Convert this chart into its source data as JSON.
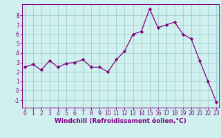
{
  "x": [
    0,
    1,
    2,
    3,
    4,
    5,
    6,
    7,
    8,
    9,
    10,
    11,
    12,
    13,
    14,
    15,
    16,
    17,
    18,
    19,
    20,
    21,
    22,
    23
  ],
  "y": [
    2.5,
    2.8,
    2.2,
    3.2,
    2.5,
    2.9,
    3.0,
    3.3,
    2.5,
    2.5,
    2.0,
    3.3,
    4.2,
    6.0,
    6.3,
    8.7,
    6.7,
    7.0,
    7.3,
    6.0,
    5.5,
    3.2,
    1.0,
    -1.2
  ],
  "line_color": "#800080",
  "marker_color": "#800080",
  "bg_color": "#cff0ee",
  "grid_color": "#9ecece",
  "axis_color": "#800080",
  "xlabel": "Windchill (Refroidissement éolien,°C)",
  "ylim": [
    -1.8,
    9.2
  ],
  "yticks": [
    -1,
    0,
    1,
    2,
    3,
    4,
    5,
    6,
    7,
    8
  ],
  "xticks": [
    0,
    1,
    2,
    3,
    4,
    5,
    6,
    7,
    8,
    9,
    10,
    11,
    12,
    13,
    14,
    15,
    16,
    17,
    18,
    19,
    20,
    21,
    22,
    23
  ],
  "xlim": [
    -0.3,
    23.3
  ],
  "tick_fontsize": 5.5,
  "xlabel_fontsize": 6.5
}
